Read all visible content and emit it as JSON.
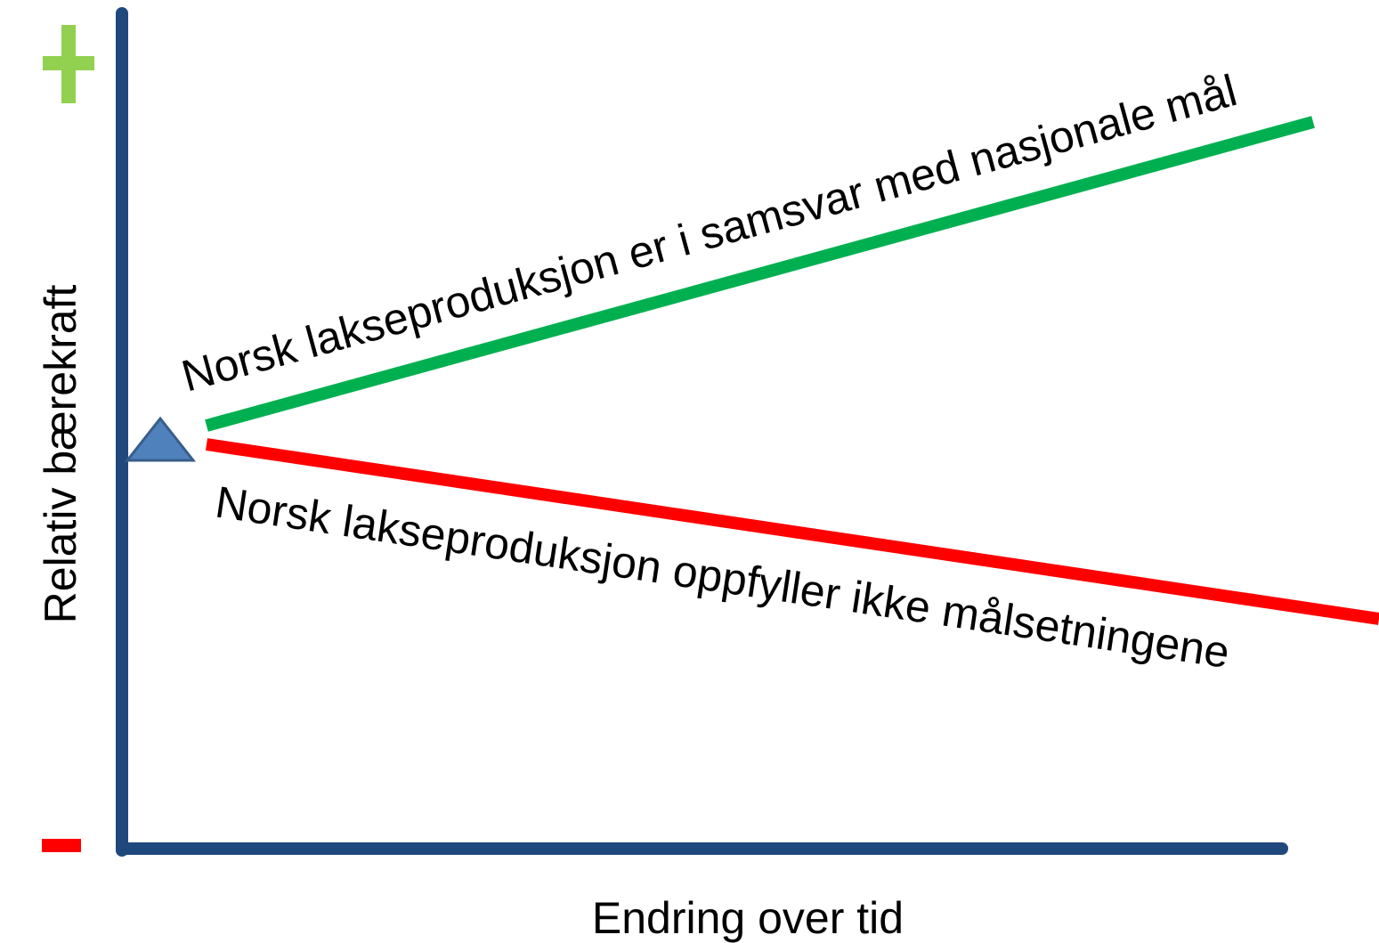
{
  "y_axis_label": "Relativ bærekraft",
  "x_axis_label": "Endring over tid",
  "lines": [
    {
      "label": "Norsk lakseproduksjon er i samsvar med nasjonale mål"
    },
    {
      "label": "Norsk lakseproduksjon oppfyller ikke målsetningene"
    }
  ]
}
